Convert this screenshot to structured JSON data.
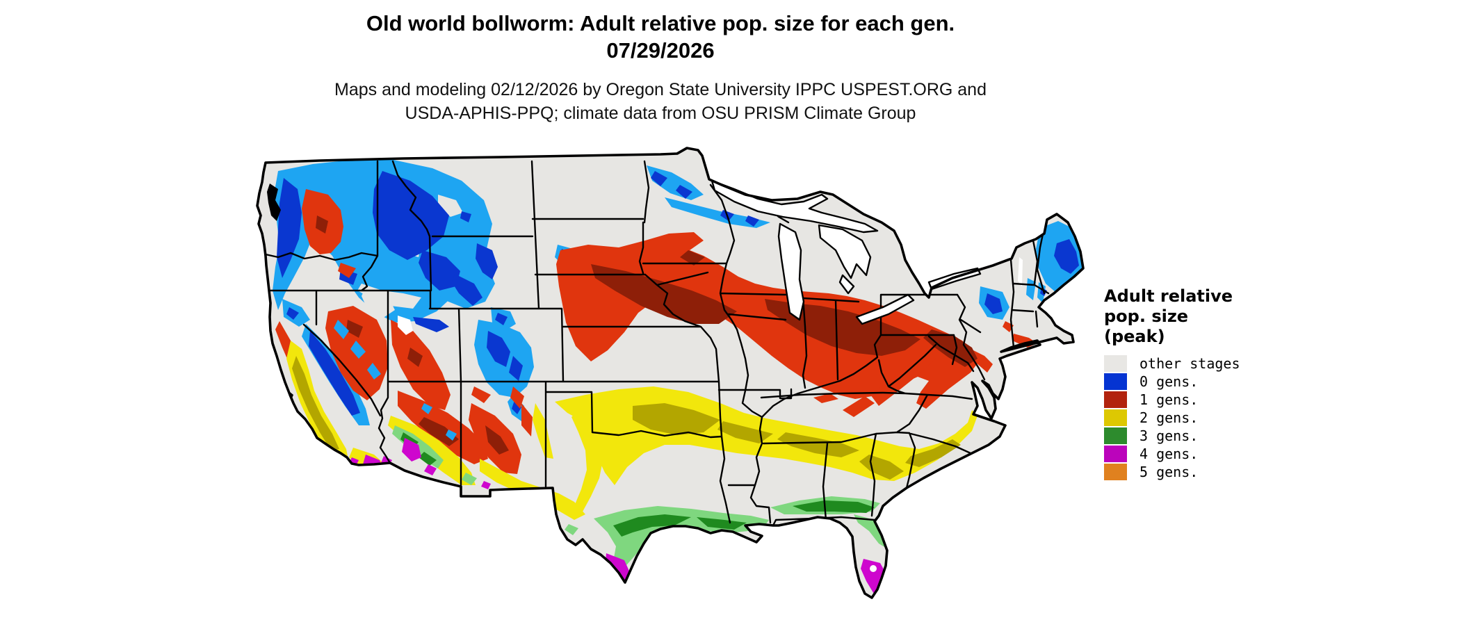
{
  "title": {
    "line1": "Old world bollworm: Adult relative pop. size for each gen.",
    "line2": "07/29/2026"
  },
  "subtitle": {
    "line1": "Maps and modeling 02/12/2026 by Oregon State University IPPC USPEST.ORG and",
    "line2": "USDA-APHIS-PPQ; climate data from OSU PRISM Climate Group"
  },
  "legend": {
    "title_lines": [
      "Adult relative",
      "pop. size",
      "(peak)"
    ],
    "items": [
      {
        "name": "other-stages",
        "label": "other stages",
        "color": "#e8e7e4"
      },
      {
        "name": "0-gens",
        "label": "0 gens.",
        "color": "#0534d2"
      },
      {
        "name": "1-gens",
        "label": "1 gens.",
        "color": "#b2230e"
      },
      {
        "name": "2-gens",
        "label": "2 gens.",
        "color": "#ddc802"
      },
      {
        "name": "3-gens",
        "label": "3 gens.",
        "color": "#2d8b2d"
      },
      {
        "name": "4-gens",
        "label": "4 gens.",
        "color": "#bb04bb"
      },
      {
        "name": "5-gens",
        "label": "5 gens.",
        "color": "#e0811f"
      }
    ]
  },
  "map": {
    "colors": {
      "other": "#e7e6e3",
      "gen0": "#0a37d0",
      "gen0_light": "#1ea5f2",
      "gen1": "#e0350e",
      "gen1_dark": "#8e1f08",
      "gen2": "#f2e70c",
      "gen2_dark": "#b3a600",
      "gen3": "#1f8a1f",
      "gen3_light": "#7fd77f",
      "gen4": "#ce06ce",
      "water": "#000000",
      "lake": "#ffffff",
      "border": "#000000"
    }
  }
}
